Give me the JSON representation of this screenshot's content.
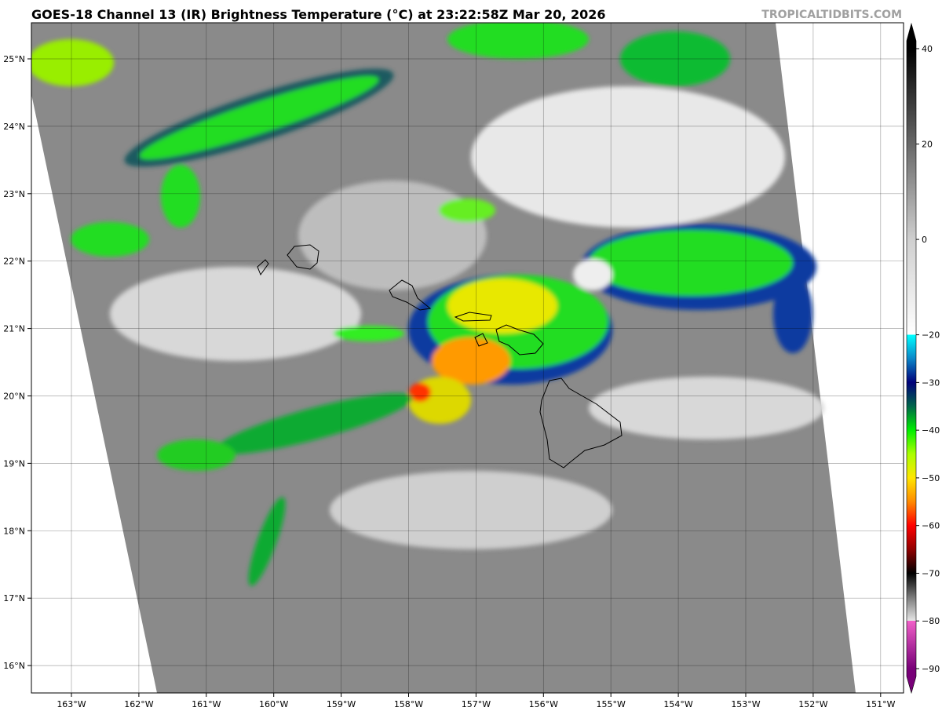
{
  "header": {
    "title": "GOES-18 Channel 13 (IR) Brightness Temperature (°C) at 23:22:58Z Mar 20, 2026",
    "brand": "TROPICALTIDBITS.COM"
  },
  "map": {
    "lon_ticks": [
      "163°W",
      "162°W",
      "161°W",
      "160°W",
      "159°W",
      "158°W",
      "157°W",
      "156°W",
      "155°W",
      "154°W",
      "153°W",
      "152°W",
      "151°W"
    ],
    "lat_ticks": [
      "25°N",
      "24°N",
      "23°N",
      "22°N",
      "21°N",
      "20°N",
      "19°N",
      "18°N",
      "17°N",
      "16°N"
    ],
    "gridlines": true,
    "outside_swath_color": "#ffffff"
  },
  "colorbar": {
    "ticks": [
      "40",
      "20",
      "0",
      "−20",
      "−30",
      "−40",
      "−50",
      "−60",
      "−70",
      "−80",
      "−90"
    ],
    "tick_values": [
      40,
      20,
      0,
      -20,
      -30,
      -40,
      -50,
      -60,
      -70,
      -80,
      -90
    ],
    "range": [
      -90,
      40
    ],
    "stops": [
      {
        "t": 40,
        "c": "#000000"
      },
      {
        "t": 0,
        "c": "#cfcfcf"
      },
      {
        "t": -20,
        "c": "#ffffff"
      },
      {
        "t": -20,
        "c": "#00ffff"
      },
      {
        "t": -25,
        "c": "#0a86c8"
      },
      {
        "t": -30,
        "c": "#00007a"
      },
      {
        "t": -35,
        "c": "#00664a"
      },
      {
        "t": -40,
        "c": "#00ee00"
      },
      {
        "t": -45,
        "c": "#aaff00"
      },
      {
        "t": -50,
        "c": "#ffe600"
      },
      {
        "t": -55,
        "c": "#ff8a00"
      },
      {
        "t": -60,
        "c": "#ff0000"
      },
      {
        "t": -65,
        "c": "#900000"
      },
      {
        "t": -70,
        "c": "#000000"
      },
      {
        "t": -75,
        "c": "#7a7a7a"
      },
      {
        "t": -80,
        "c": "#e6e6e6"
      },
      {
        "t": -80,
        "c": "#f060c8"
      },
      {
        "t": -90,
        "c": "#780078"
      }
    ]
  }
}
